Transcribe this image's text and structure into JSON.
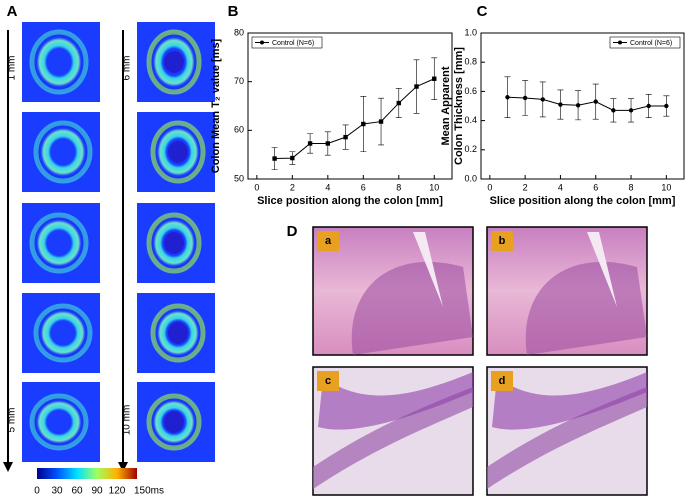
{
  "panel_labels": [
    "A",
    "B",
    "C",
    "D"
  ],
  "panel_a": {
    "labels": [
      "1 mm",
      "6 mm",
      "5 mm",
      "10 mm"
    ],
    "colorbar_ticks": [
      "0",
      "30",
      "60",
      "90",
      "120",
      "150ms"
    ]
  },
  "panel_d": {
    "labels": [
      "a",
      "b",
      "c",
      "d"
    ]
  },
  "chart_data": [
    {
      "type": "line",
      "x": [
        1,
        2,
        3,
        4,
        5,
        6,
        7,
        8,
        9,
        10
      ],
      "series": [
        {
          "name": "Control (N=6)",
          "color": "#000000",
          "marker": "square",
          "values": [
            54.2,
            54.3,
            57.3,
            57.3,
            58.6,
            61.3,
            61.8,
            65.6,
            69.0,
            70.6
          ],
          "errors": [
            2.3,
            1.3,
            2.0,
            2.4,
            2.5,
            5.7,
            4.8,
            3.0,
            5.5,
            4.3
          ]
        }
      ],
      "xlim": [
        -0.5,
        11
      ],
      "ylim": [
        50,
        80
      ],
      "xticks": [
        0,
        2,
        4,
        6,
        8,
        10
      ],
      "yticks": [
        50,
        60,
        70,
        80
      ],
      "xlabel": "Slice position along the colon [mm]",
      "ylabel": [
        "Colon Mean T₂ value [ms]"
      ],
      "legend": "upper left"
    },
    {
      "type": "line",
      "x": [
        1,
        2,
        3,
        4,
        5,
        6,
        7,
        8,
        9,
        10
      ],
      "series": [
        {
          "name": "Control (N=6)",
          "color": "#000000",
          "marker": "circle",
          "values": [
            0.56,
            0.555,
            0.545,
            0.51,
            0.505,
            0.53,
            0.47,
            0.47,
            0.5,
            0.5
          ],
          "errors": [
            0.14,
            0.12,
            0.12,
            0.1,
            0.1,
            0.12,
            0.08,
            0.08,
            0.08,
            0.07
          ]
        }
      ],
      "xlim": [
        -0.5,
        11
      ],
      "ylim": [
        0,
        1
      ],
      "xticks": [
        0,
        2,
        4,
        6,
        8,
        10
      ],
      "yticks": [
        {
          "value": 0,
          "label": "0.0"
        },
        {
          "value": 0.2,
          "label": "0.2"
        },
        {
          "value": 0.4,
          "label": "0.4"
        },
        {
          "value": 0.6,
          "label": "0.6"
        },
        {
          "value": 0.8,
          "label": "0.8"
        },
        {
          "value": 1,
          "label": "1.0"
        }
      ],
      "xlabel": "Slice position along the colon [mm]",
      "ylabel": [
        "Mean Apparent",
        "Colon Thickness [mm]"
      ],
      "legend": "upper right"
    }
  ]
}
